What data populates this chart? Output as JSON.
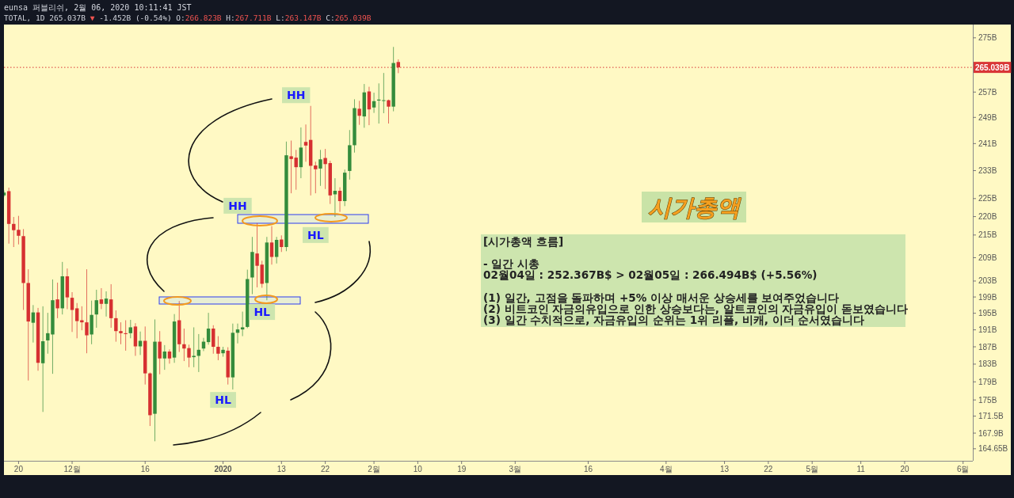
{
  "chart_data": {
    "type": "candlestick",
    "title": "TOTAL, 1D 265.037B ▼ -1.452B (-0.54%) O:266.823B H:267.711B L:263.147B C:265.039B",
    "subtitle": "eunsa 퍼블리쉬, 2월 06, 2020 10:11:41 JST",
    "x": [
      "2019-11-17",
      "2019-11-18",
      "2019-11-19",
      "2019-11-20",
      "2019-11-21",
      "2019-11-22",
      "2019-11-23",
      "2019-11-24",
      "2019-11-25",
      "2019-11-26",
      "2019-11-27",
      "2019-11-28",
      "2019-11-29",
      "2019-11-30",
      "2019-12-01",
      "2019-12-02",
      "2019-12-03",
      "2019-12-04",
      "2019-12-05",
      "2019-12-06",
      "2019-12-07",
      "2019-12-08",
      "2019-12-09",
      "2019-12-10",
      "2019-12-11",
      "2019-12-12",
      "2019-12-13",
      "2019-12-14",
      "2019-12-15",
      "2019-12-16",
      "2019-12-17",
      "2019-12-18",
      "2019-12-19",
      "2019-12-20",
      "2019-12-21",
      "2019-12-22",
      "2019-12-23",
      "2019-12-24",
      "2019-12-25",
      "2019-12-26",
      "2019-12-27",
      "2019-12-28",
      "2019-12-29",
      "2019-12-30",
      "2019-12-31",
      "2020-01-01",
      "2020-01-02",
      "2020-01-03",
      "2020-01-04",
      "2020-01-05",
      "2020-01-06",
      "2020-01-07",
      "2020-01-08",
      "2020-01-09",
      "2020-01-10",
      "2020-01-11",
      "2020-01-12",
      "2020-01-13",
      "2020-01-14",
      "2020-01-15",
      "2020-01-16",
      "2020-01-17",
      "2020-01-18",
      "2020-01-19",
      "2020-01-20",
      "2020-01-21",
      "2020-01-22",
      "2020-01-23",
      "2020-01-24",
      "2020-01-25",
      "2020-01-26",
      "2020-01-27",
      "2020-01-28",
      "2020-01-29",
      "2020-01-30",
      "2020-01-31",
      "2020-02-01",
      "2020-02-02",
      "2020-02-03",
      "2020-02-04",
      "2020-02-05",
      "2020-02-06"
    ],
    "ohlc": [
      [
        225.9,
        227.3,
        225.5,
        226.7
      ],
      [
        227.1,
        228.1,
        212.7,
        218.0
      ],
      [
        218.0,
        219.9,
        211.8,
        216.3
      ],
      [
        216.4,
        220.2,
        212.5,
        214.8
      ],
      [
        214.7,
        216.6,
        195.8,
        202.5
      ],
      [
        202.5,
        206.0,
        179.3,
        193.0
      ],
      [
        192.7,
        197.0,
        188.0,
        195.2
      ],
      [
        195.2,
        196.3,
        181.5,
        183.3
      ],
      [
        183.2,
        196.7,
        172.4,
        188.3
      ],
      [
        188.5,
        195.1,
        185.4,
        190.2
      ],
      [
        189.9,
        203.4,
        180.8,
        198.2
      ],
      [
        198.4,
        202.6,
        193.8,
        196.2
      ],
      [
        196.2,
        207.9,
        194.7,
        204.2
      ],
      [
        204.2,
        206.2,
        196.0,
        198.9
      ],
      [
        198.8,
        200.2,
        190.5,
        195.8
      ],
      [
        196.2,
        197.5,
        189.0,
        193.1
      ],
      [
        193.3,
        196.7,
        190.9,
        192.8
      ],
      [
        192.8,
        206.0,
        185.5,
        189.7
      ],
      [
        189.9,
        198.1,
        187.6,
        194.6
      ],
      [
        194.7,
        200.8,
        191.5,
        198.2
      ],
      [
        198.4,
        201.2,
        196.0,
        197.3
      ],
      [
        197.3,
        200.4,
        194.2,
        198.6
      ],
      [
        198.4,
        202.2,
        191.5,
        193.8
      ],
      [
        193.8,
        195.7,
        188.2,
        190.7
      ],
      [
        190.7,
        192.8,
        187.6,
        190.2
      ],
      [
        190.2,
        193.3,
        186.1,
        190.0
      ],
      [
        190.2,
        193.4,
        189.0,
        191.6
      ],
      [
        191.8,
        192.6,
        184.9,
        187.1
      ],
      [
        187.1,
        190.6,
        185.1,
        188.4
      ],
      [
        188.4,
        191.8,
        178.4,
        180.9
      ],
      [
        180.9,
        181.1,
        169.4,
        171.7
      ],
      [
        172.0,
        193.5,
        166.2,
        188.2
      ],
      [
        188.2,
        190.7,
        180.7,
        184.3
      ],
      [
        184.3,
        187.4,
        181.7,
        185.9
      ],
      [
        185.9,
        186.4,
        183.1,
        184.3
      ],
      [
        184.5,
        194.8,
        183.3,
        193.0
      ],
      [
        193.3,
        198.0,
        185.8,
        187.6
      ],
      [
        187.6,
        191.3,
        183.7,
        186.6
      ],
      [
        186.7,
        187.5,
        182.3,
        184.5
      ],
      [
        184.6,
        191.6,
        182.3,
        184.9
      ],
      [
        184.9,
        190.0,
        181.2,
        186.3
      ],
      [
        186.6,
        189.1,
        186.0,
        188.2
      ],
      [
        188.1,
        195.1,
        187.5,
        191.3
      ],
      [
        191.3,
        192.1,
        185.4,
        187.0
      ],
      [
        187.0,
        189.5,
        183.9,
        185.4
      ],
      [
        185.5,
        187.0,
        184.7,
        186.3
      ],
      [
        186.1,
        186.9,
        178.4,
        180.0
      ],
      [
        180.0,
        192.5,
        177.3,
        190.3
      ],
      [
        190.3,
        192.5,
        187.8,
        191.1
      ],
      [
        191.1,
        195.4,
        189.5,
        191.6
      ],
      [
        191.7,
        205.9,
        191.4,
        203.5
      ],
      [
        203.9,
        214.5,
        199.7,
        210.5
      ],
      [
        210.1,
        218.2,
        201.4,
        206.9
      ],
      [
        207.2,
        208.2,
        201.3,
        202.3
      ],
      [
        202.5,
        214.5,
        198.2,
        213.0
      ],
      [
        213.0,
        217.4,
        207.2,
        209.2
      ],
      [
        209.2,
        214.5,
        207.5,
        213.7
      ],
      [
        213.8,
        214.9,
        210.5,
        211.8
      ],
      [
        211.8,
        241.6,
        210.7,
        237.5
      ],
      [
        237.2,
        241.9,
        226.5,
        236.4
      ],
      [
        236.8,
        239.1,
        227.5,
        234.0
      ],
      [
        234.0,
        245.9,
        230.8,
        239.8
      ],
      [
        241.5,
        246.8,
        235.6,
        240.4
      ],
      [
        242.1,
        252.6,
        225.9,
        234.4
      ],
      [
        234.5,
        235.6,
        226.5,
        233.4
      ],
      [
        233.6,
        239.1,
        228.6,
        236.3
      ],
      [
        236.7,
        239.4,
        227.7,
        234.9
      ],
      [
        235.2,
        235.9,
        223.5,
        225.9
      ],
      [
        226.2,
        230.8,
        219.9,
        227.2
      ],
      [
        227.2,
        228.2,
        221.3,
        224.3
      ],
      [
        224.3,
        233.3,
        222.9,
        232.4
      ],
      [
        232.9,
        245.1,
        230.4,
        240.5
      ],
      [
        240.5,
        254.7,
        238.3,
        251.9
      ],
      [
        251.7,
        254.2,
        246.7,
        249.5
      ],
      [
        249.3,
        259.6,
        245.8,
        256.9
      ],
      [
        257.2,
        258.7,
        246.6,
        251.5
      ],
      [
        252.1,
        256.8,
        250.4,
        254.1
      ],
      [
        254.3,
        259.8,
        247.1,
        254.6
      ],
      [
        254.3,
        263.2,
        250.3,
        254.4
      ],
      [
        254.4,
        254.6,
        247.1,
        252.367
      ],
      [
        252.367,
        271.9,
        250.9,
        266.494
      ],
      [
        266.823,
        267.711,
        263.147,
        265.039
      ]
    ],
    "colors": [
      "#348c3c",
      "#d63031",
      "#d63031",
      "#d63031",
      "#d63031",
      "#d63031",
      "#348c3c",
      "#d63031",
      "#348c3c",
      "#348c3c",
      "#348c3c",
      "#d63031",
      "#348c3c",
      "#d63031",
      "#d63031",
      "#d63031",
      "#d63031",
      "#d63031",
      "#348c3c",
      "#348c3c",
      "#d63031",
      "#348c3c",
      "#d63031",
      "#d63031",
      "#d63031",
      "#d63031",
      "#348c3c",
      "#d63031",
      "#348c3c",
      "#d63031",
      "#d63031",
      "#348c3c",
      "#d63031",
      "#348c3c",
      "#d63031",
      "#348c3c",
      "#d63031",
      "#d63031",
      "#d63031",
      "#348c3c",
      "#348c3c",
      "#348c3c",
      "#348c3c",
      "#d63031",
      "#d63031",
      "#348c3c",
      "#d63031",
      "#348c3c",
      "#348c3c",
      "#348c3c",
      "#348c3c",
      "#348c3c",
      "#d63031",
      "#d63031",
      "#348c3c",
      "#d63031",
      "#348c3c",
      "#d63031",
      "#348c3c",
      "#d63031",
      "#d63031",
      "#348c3c",
      "#d63031",
      "#d63031",
      "#d63031",
      "#348c3c",
      "#d63031",
      "#d63031",
      "#348c3c",
      "#d63031",
      "#348c3c",
      "#348c3c",
      "#348c3c",
      "#d63031",
      "#348c3c",
      "#d63031",
      "#348c3c",
      "#348c3c",
      "#348c3c",
      "#d63031",
      "#348c3c",
      "#d63031"
    ],
    "xlim": [
      "2019-11-17",
      "2020-06-03"
    ],
    "xticks": [
      {
        "value": "2019-11-20",
        "label": "20"
      },
      {
        "value": "2019-12-01",
        "label": "12월"
      },
      {
        "value": "2019-12-16",
        "label": "16"
      },
      {
        "value": "2020-01-01",
        "label": "2020"
      },
      {
        "value": "2020-01-13",
        "label": "13"
      },
      {
        "value": "2020-01-22",
        "label": "22"
      },
      {
        "value": "2020-02-01",
        "label": "2월"
      },
      {
        "value": "2020-02-10",
        "label": "10"
      },
      {
        "value": "2020-02-19",
        "label": "19"
      },
      {
        "value": "2020-03-01",
        "label": "3월"
      },
      {
        "value": "2020-03-16",
        "label": "16"
      },
      {
        "value": "2020-04-01",
        "label": "4월"
      },
      {
        "value": "2020-04-13",
        "label": "13"
      },
      {
        "value": "2020-04-22",
        "label": "22"
      },
      {
        "value": "2020-05-01",
        "label": "5월"
      },
      {
        "value": "2020-05-11",
        "label": "11"
      },
      {
        "value": "2020-05-20",
        "label": "20"
      },
      {
        "value": "2020-06-01",
        "label": "6월"
      }
    ],
    "ylim": [
      162.2,
      279.6
    ],
    "yticks": [
      {
        "value": 275,
        "label": "275B"
      },
      {
        "value": 257,
        "label": "257B"
      },
      {
        "value": 249,
        "label": "249B"
      },
      {
        "value": 241,
        "label": "241B"
      },
      {
        "value": 233,
        "label": "233B"
      },
      {
        "value": 225,
        "label": "225B"
      },
      {
        "value": 220,
        "label": "220B"
      },
      {
        "value": 215,
        "label": "215B"
      },
      {
        "value": 209,
        "label": "209B"
      },
      {
        "value": 203,
        "label": "203B"
      },
      {
        "value": 199,
        "label": "199B"
      },
      {
        "value": 195,
        "label": "195B"
      },
      {
        "value": 191,
        "label": "191B"
      },
      {
        "value": 187,
        "label": "187B"
      },
      {
        "value": 183,
        "label": "183B"
      },
      {
        "value": 179,
        "label": "179B"
      },
      {
        "value": 175,
        "label": "175B"
      },
      {
        "value": 171.5,
        "label": "171.5B"
      },
      {
        "value": 167.9,
        "label": "167.9B"
      },
      {
        "value": 164.65,
        "label": "164.65B"
      }
    ],
    "log": true,
    "ref_lines": [
      {
        "axis": "y",
        "value": 265.039,
        "label": "265.039B",
        "color": "#d93636",
        "line_style": "dotted"
      }
    ],
    "annotations": [
      "시가총액",
      "[시가총액 흐름]\n\n- 일간 시총\n02월04일 : 252.367B$ > 02월05일 : 266.494B$ (+5.56%)\n\n(1) 일간, 고점을 돌파하며 +5% 이상 매서운 상승세를 보여주었습니다\n(2) 비트코인 자금의유입으로 인한 상승보다는, 알트코인의 자금유입이 돋보였습니다\n(3) 일간 수치적으로, 자금유입의 순위는 1위 리플, 비캐, 이더 순서였습니다",
      {
        "text": "HH",
        "x": "2020-01-16",
        "y": 256
      },
      {
        "text": "HH",
        "x": "2020-01-04",
        "y": 223
      },
      {
        "text": "HL",
        "x": "2020-01-20",
        "y": 215
      },
      {
        "text": "HL",
        "x": "2020-01-09",
        "y": 195.3
      },
      {
        "text": "HL",
        "x": "2020-01-01",
        "y": 175
      }
    ]
  }
}
